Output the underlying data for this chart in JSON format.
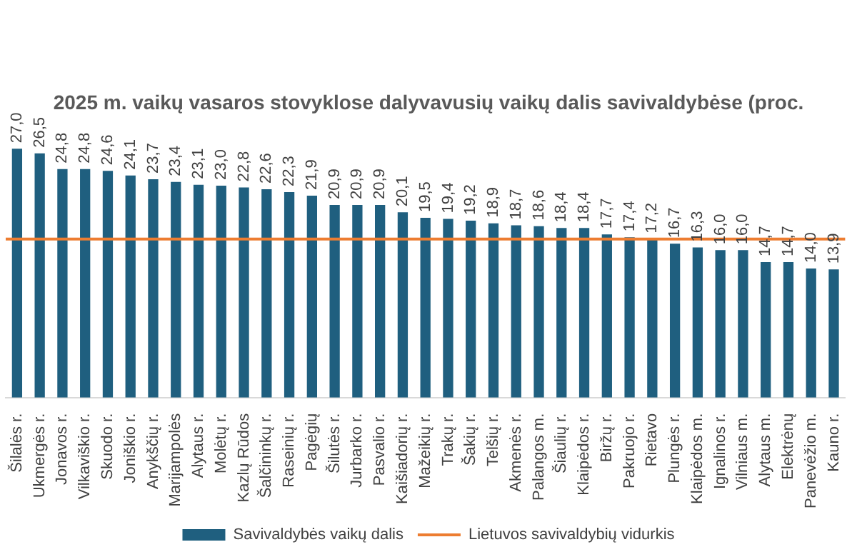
{
  "chart_data": {
    "type": "bar",
    "title": "2025 m. vaikų vasaros stovyklose dalyvavusių vaikų dalis savivaldybėse (proc.",
    "categories": [
      "Šilalės r.",
      "Ukmergės r.",
      "Jonavos r.",
      "Vilkaviškio r.",
      "Skuodo r.",
      "Joniškio r.",
      "Anykščių r.",
      "Marijampolės",
      "Alytaus r.",
      "Molėtų r.",
      "Kazlų Rūdos",
      "Šalčininkų r.",
      "Raseinių r.",
      "Pagėgių",
      "Šilutės r.",
      "Jurbarko r.",
      "Pasvalio r.",
      "Kaišiadorių r.",
      "Mažeikių r.",
      "Trakų r.",
      "Šakių r.",
      "Telšių r.",
      "Akmenės r.",
      "Palangos m.",
      "Šiaulių r.",
      "Klaipėdos r.",
      "Biržų r.",
      "Pakruojo r.",
      "Rietavo",
      "Plungės r.",
      "Klaipėdos m.",
      "Ignalinos r.",
      "Vilniaus m.",
      "Alytaus m.",
      "Elektrėnų",
      "Panevėžio m.",
      "Kauno r."
    ],
    "series": [
      {
        "name": "Savivaldybės vaikų dalis",
        "color": "#1f5f7f",
        "values": [
          27.0,
          26.5,
          24.8,
          24.8,
          24.6,
          24.1,
          23.7,
          23.4,
          23.1,
          23.0,
          22.8,
          22.6,
          22.3,
          21.9,
          20.9,
          20.9,
          20.9,
          20.1,
          19.5,
          19.4,
          19.2,
          18.9,
          18.7,
          18.6,
          18.4,
          18.4,
          17.7,
          17.4,
          17.2,
          16.7,
          16.3,
          16.0,
          16.0,
          14.7,
          14.7,
          14.0,
          13.9
        ],
        "value_labels": [
          "27,0",
          "26,5",
          "24,8",
          "24,8",
          "24,6",
          "24,1",
          "23,7",
          "23,4",
          "23,1",
          "23,0",
          "22,8",
          "22,6",
          "22,3",
          "21,9",
          "20,9",
          "20,9",
          "20,9",
          "20,1",
          "19,5",
          "19,4",
          "19,2",
          "18,9",
          "18,7",
          "18,6",
          "18,4",
          "18,4",
          "17,7",
          "17,4",
          "17,2",
          "16,7",
          "16,3",
          "16,0",
          "16,0",
          "14,7",
          "14,7",
          "14,0",
          "13,9"
        ]
      }
    ],
    "ref_lines": [
      {
        "axis": "y",
        "value": 17.2,
        "label": "Lietuvos savivaldybių vidurkis",
        "color": "#ed7d31"
      }
    ],
    "legend": "bottom"
  }
}
